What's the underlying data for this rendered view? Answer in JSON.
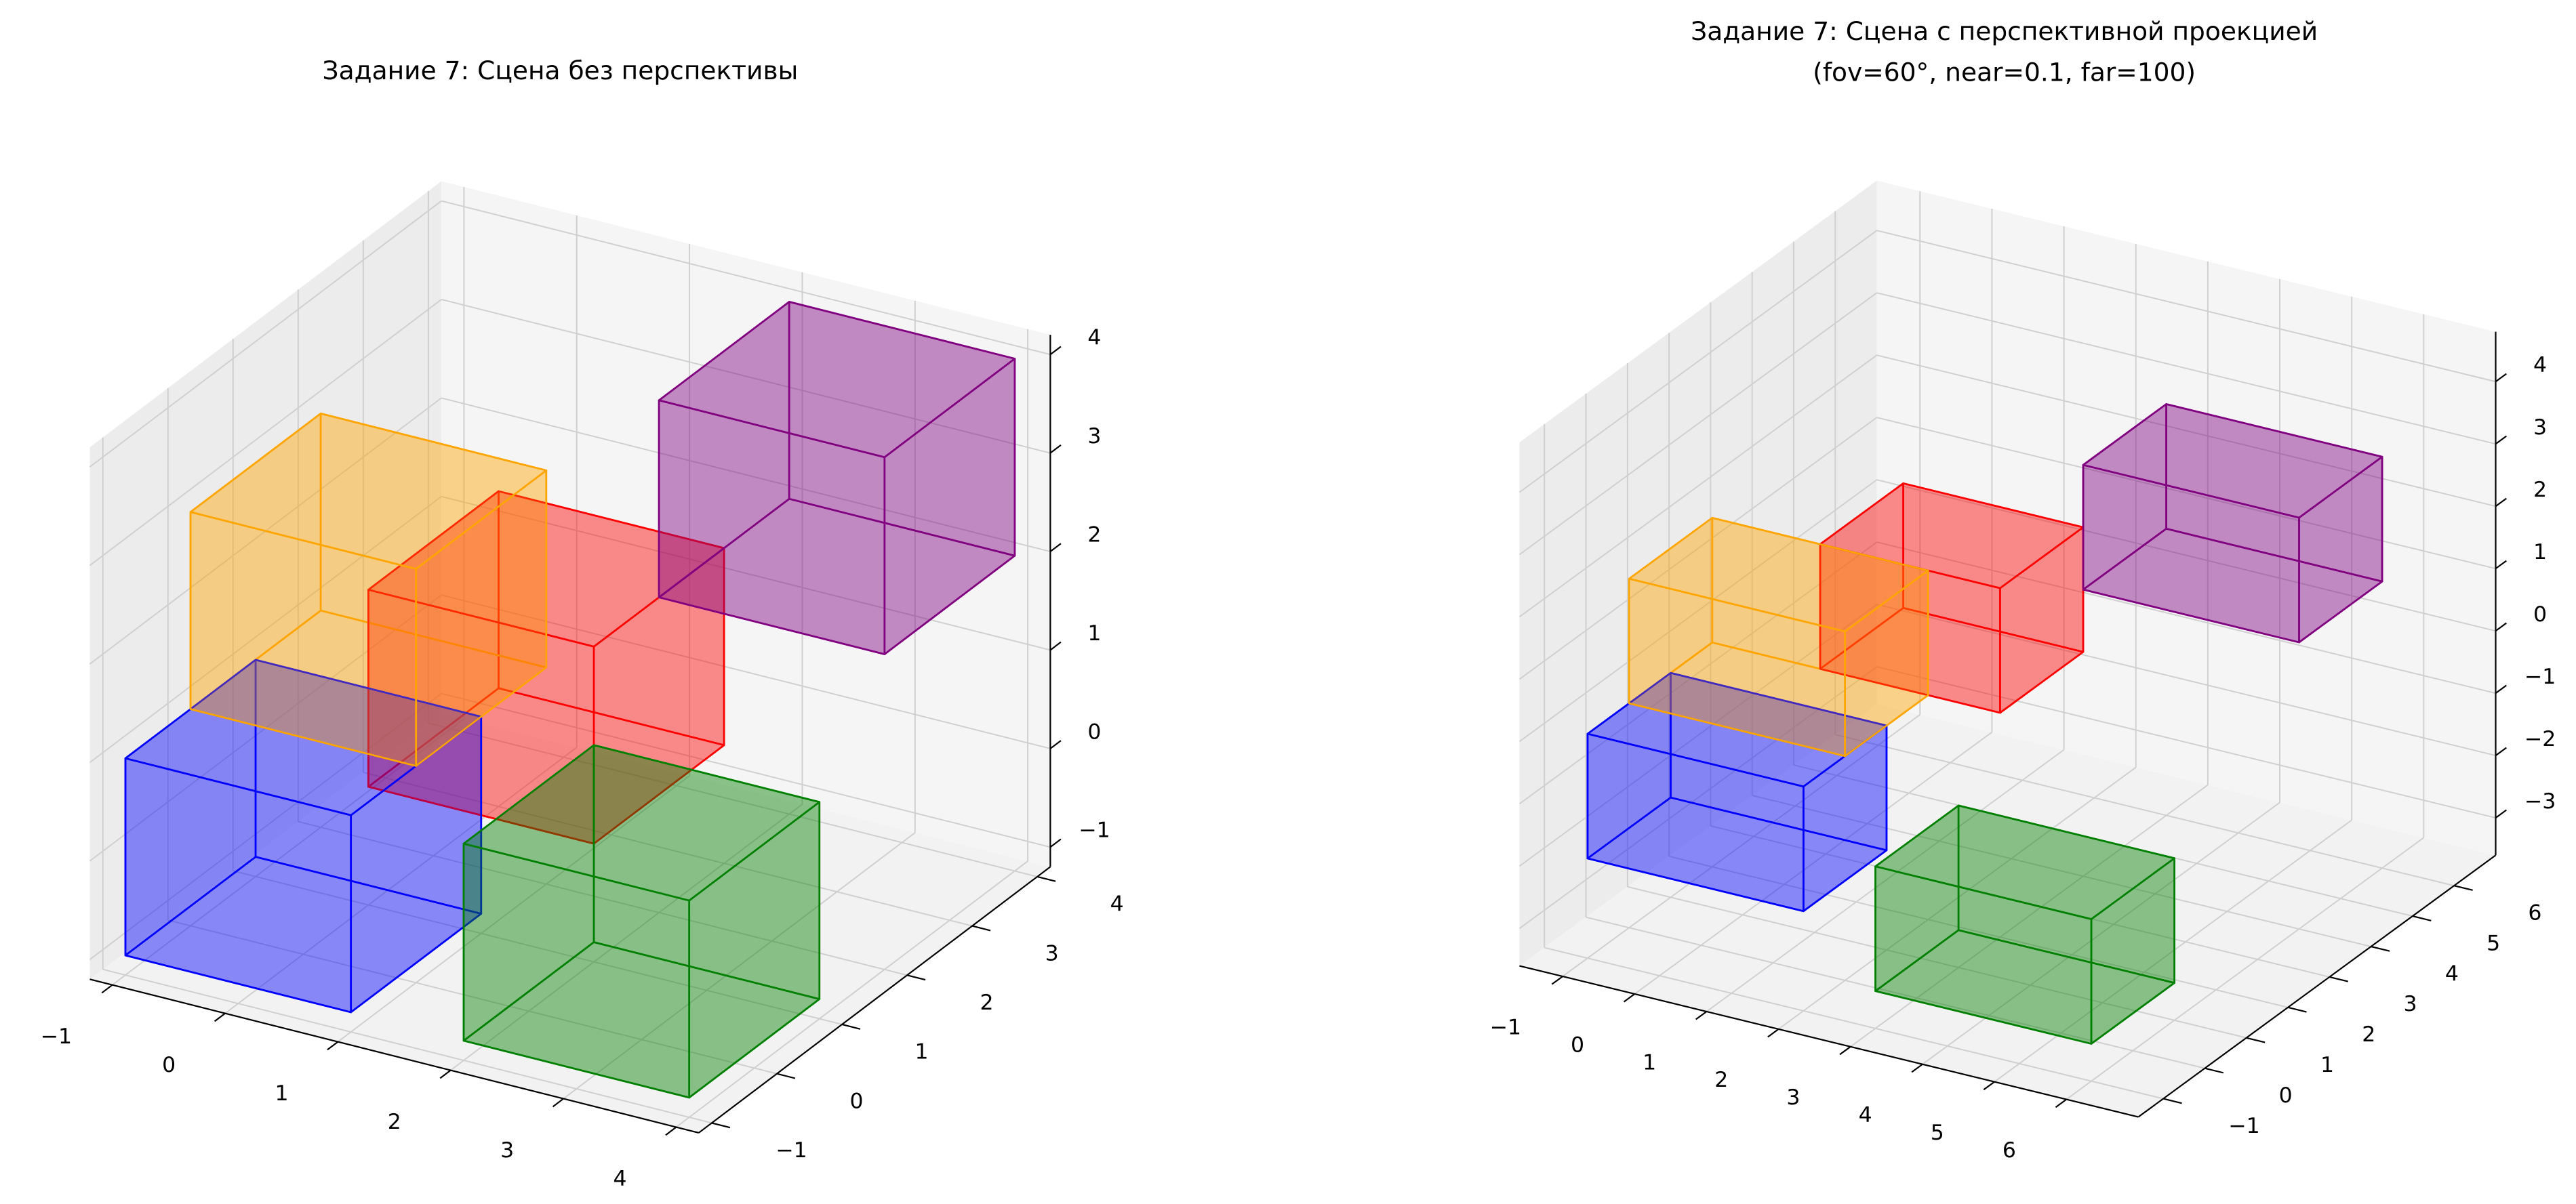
{
  "chart_data": [
    {
      "type": "box3d",
      "title": "Задание 7: Сцена без перспективы",
      "xlim": [
        -1.2,
        4.2
      ],
      "ylim": [
        -1.2,
        4.2
      ],
      "zlim": [
        -1.2,
        4.2
      ],
      "xticks": [
        {
          "value": -1,
          "label": "−1"
        },
        0,
        1,
        2,
        3,
        4
      ],
      "yticks": [
        {
          "value": -1,
          "label": "−1"
        },
        0,
        1,
        2,
        3,
        4
      ],
      "zticks": [
        {
          "value": -1,
          "label": "−1"
        },
        0,
        1,
        2,
        3,
        4
      ],
      "grid": true,
      "boxes": [
        {
          "color": "#0000ff",
          "x": [
            -1,
            1
          ],
          "y": [
            -1,
            1
          ],
          "z": [
            -1,
            1
          ]
        },
        {
          "color": "#008000",
          "x": [
            2,
            4
          ],
          "y": [
            -1,
            1
          ],
          "z": [
            -1,
            1
          ]
        },
        {
          "color": "#ff0000",
          "x": [
            0,
            2
          ],
          "y": [
            1,
            3
          ],
          "z": [
            0,
            2
          ]
        },
        {
          "color": "#ffa500",
          "x": [
            -1,
            1
          ],
          "y": [
            0,
            2
          ],
          "z": [
            1,
            3
          ]
        },
        {
          "color": "#800080",
          "x": [
            2,
            4
          ],
          "y": [
            2,
            4
          ],
          "z": [
            2,
            4
          ]
        }
      ]
    },
    {
      "type": "box3d",
      "title": "Задание 7: Сцена с перспективной проекцией",
      "subtitle": "(fov=60°, near=0.1, far=100)",
      "xlim": [
        -1.6,
        7.0
      ],
      "ylim": [
        -1.6,
        7.0
      ],
      "zlim": [
        -3.6,
        4.8
      ],
      "xticks": [
        {
          "value": -1,
          "label": "−1"
        },
        0,
        1,
        2,
        3,
        4,
        5,
        6
      ],
      "yticks": [
        {
          "value": -1,
          "label": "−1"
        },
        0,
        1,
        2,
        3,
        4,
        5,
        6
      ],
      "zticks": [
        {
          "value": -3,
          "label": "−3"
        },
        {
          "value": -2,
          "label": "−2"
        },
        {
          "value": -1,
          "label": "−1"
        },
        0,
        1,
        2,
        3,
        4
      ],
      "grid": true,
      "boxes": [
        {
          "color": "#0000ff",
          "x": [
            -1,
            2
          ],
          "y": [
            -1,
            1
          ],
          "z": [
            -2,
            0
          ]
        },
        {
          "color": "#008000",
          "x": [
            3,
            6
          ],
          "y": [
            -1,
            1
          ],
          "z": [
            -3,
            -1
          ]
        },
        {
          "color": "#ff0000",
          "x": [
            0.5,
            3
          ],
          "y": [
            2,
            4
          ],
          "z": [
            0,
            2
          ]
        },
        {
          "color": "#ffa500",
          "x": [
            -1,
            2
          ],
          "y": [
            0,
            2
          ],
          "z": [
            0,
            2
          ]
        },
        {
          "color": "#800080",
          "x": [
            3,
            6
          ],
          "y": [
            4,
            6
          ],
          "z": [
            1,
            3
          ]
        }
      ]
    }
  ]
}
